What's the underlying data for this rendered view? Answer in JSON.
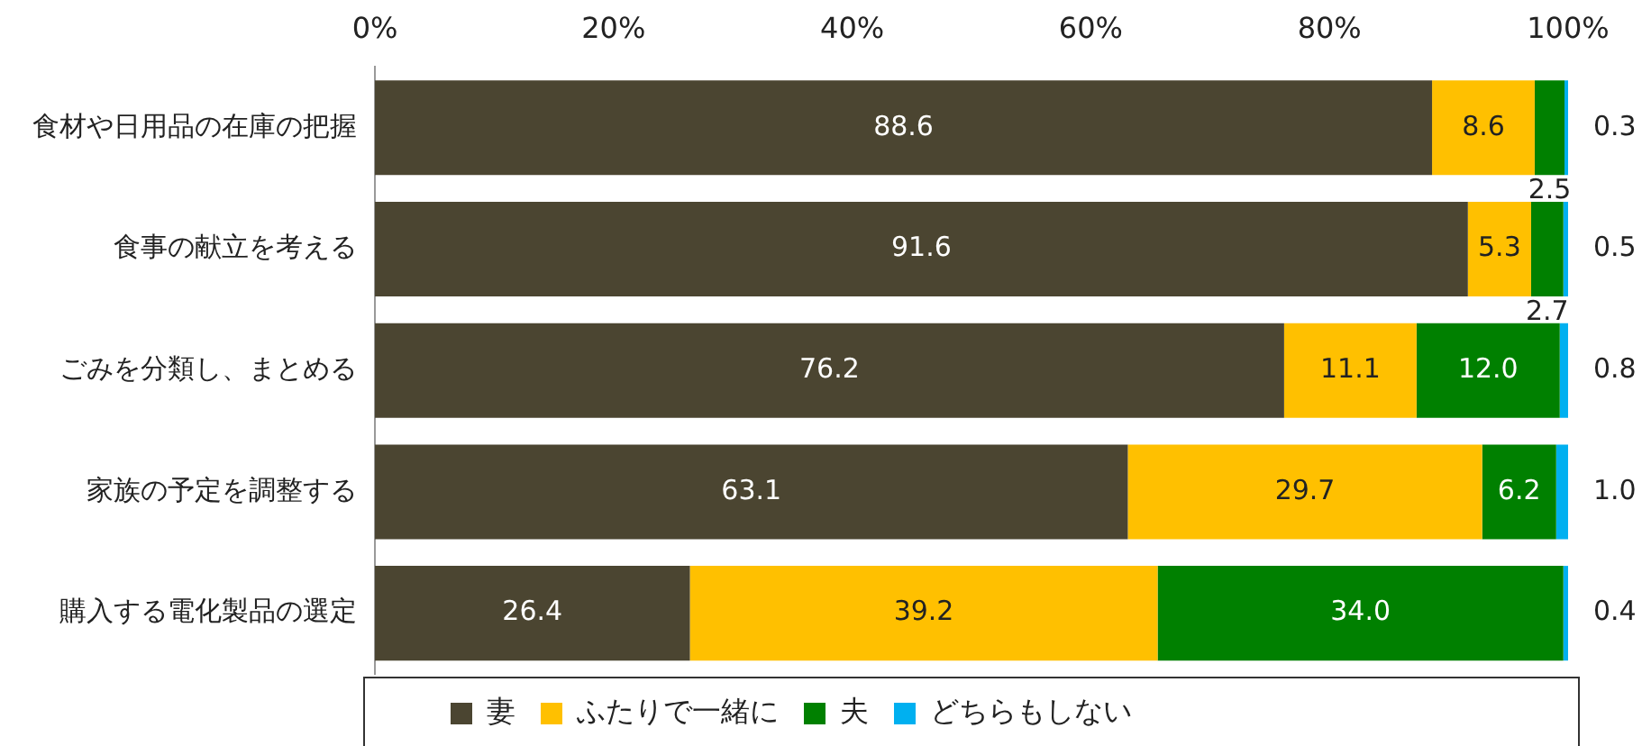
{
  "chart_data": {
    "type": "bar",
    "orientation": "horizontal",
    "stacked": true,
    "categories": [
      "食材や日用品の在庫の把握",
      "食事の献立を考える",
      "ごみを分類し、まとめる",
      "家族の予定を調整する",
      "購入する電化製品の選定"
    ],
    "series": [
      {
        "name": "妻",
        "color": "#4b4531",
        "values": [
          88.6,
          91.6,
          76.2,
          63.1,
          26.4
        ],
        "value_labels": [
          "88.6",
          "91.6",
          "76.2",
          "63.1",
          "26.4"
        ]
      },
      {
        "name": "ふたりで一緒に",
        "color": "#ffc000",
        "values": [
          8.6,
          5.3,
          11.1,
          29.7,
          39.2
        ],
        "value_labels": [
          "8.6",
          "5.3",
          "11.1",
          "29.7",
          "39.2"
        ]
      },
      {
        "name": "夫",
        "color": "#008000",
        "values": [
          2.5,
          2.7,
          12.0,
          6.2,
          34.0
        ],
        "value_labels": [
          "2.5",
          "2.7",
          "12.0",
          "6.2",
          "34.0"
        ]
      },
      {
        "name": "どちらもしない",
        "color": "#00b0f0",
        "values": [
          0.3,
          0.5,
          0.8,
          1.0,
          0.4
        ],
        "value_labels": [
          "0.3",
          "0.5",
          "0.8",
          "1.0",
          "0.4"
        ]
      }
    ],
    "xlim": [
      0,
      100
    ],
    "xticks": [
      {
        "value": 0,
        "label": "0%"
      },
      {
        "value": 20,
        "label": "20%"
      },
      {
        "value": 40,
        "label": "40%"
      },
      {
        "value": 60,
        "label": "60%"
      },
      {
        "value": 80,
        "label": "80%"
      },
      {
        "value": 100,
        "label": "100%"
      }
    ],
    "legend": "bottom",
    "grid": false
  }
}
